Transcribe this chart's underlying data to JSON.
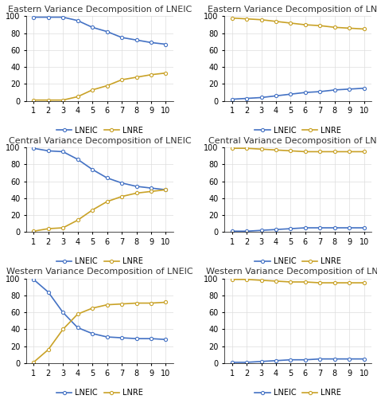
{
  "titles": [
    "Eastern Variance Decomposition of LNEIC",
    "Eastern Variance Decomposition of LNRE",
    "Central Variance Decomposition of LNEIC",
    "Central Variance Decomposition of LNRE",
    "Western Variance Decomposition of LNEIC",
    "Western Variance Decomposition of LNRE"
  ],
  "x": [
    1,
    2,
    3,
    4,
    5,
    6,
    7,
    8,
    9,
    10
  ],
  "lneic_color": "#4472c4",
  "lnre_color": "#c9a227",
  "series": {
    "east_lneic_lneic": [
      99,
      99,
      99,
      95,
      87,
      82,
      75,
      72,
      69,
      67
    ],
    "east_lneic_lnre": [
      1,
      1,
      1,
      5,
      13,
      18,
      25,
      28,
      31,
      33
    ],
    "east_lnre_lneic": [
      2,
      3,
      4,
      6,
      8,
      10,
      11,
      13,
      14,
      15
    ],
    "east_lnre_lnre": [
      98,
      97,
      96,
      94,
      92,
      90,
      89,
      87,
      86,
      85
    ],
    "central_lneic_lneic": [
      99,
      96,
      95,
      86,
      74,
      64,
      58,
      54,
      52,
      50
    ],
    "central_lneic_lnre": [
      1,
      4,
      5,
      14,
      26,
      36,
      42,
      46,
      48,
      50
    ],
    "central_lnre_lneic": [
      1,
      1,
      2,
      3,
      4,
      5,
      5,
      5,
      5,
      5
    ],
    "central_lnre_lnre": [
      99,
      99,
      98,
      97,
      96,
      95,
      95,
      95,
      95,
      95
    ],
    "western_lneic_lneic": [
      99,
      84,
      60,
      42,
      35,
      31,
      30,
      29,
      29,
      28
    ],
    "western_lneic_lnre": [
      1,
      16,
      40,
      58,
      65,
      69,
      70,
      71,
      71,
      72
    ],
    "western_lnre_lneic": [
      1,
      1,
      2,
      3,
      4,
      4,
      5,
      5,
      5,
      5
    ],
    "western_lnre_lnre": [
      99,
      99,
      98,
      97,
      96,
      96,
      95,
      95,
      95,
      95
    ]
  },
  "legend_labels": [
    "LNEIC",
    "LNRE"
  ],
  "background_color": "#ffffff",
  "grid_color": "#dddddd",
  "title_fontsize": 8,
  "axis_fontsize": 7,
  "legend_fontsize": 7
}
